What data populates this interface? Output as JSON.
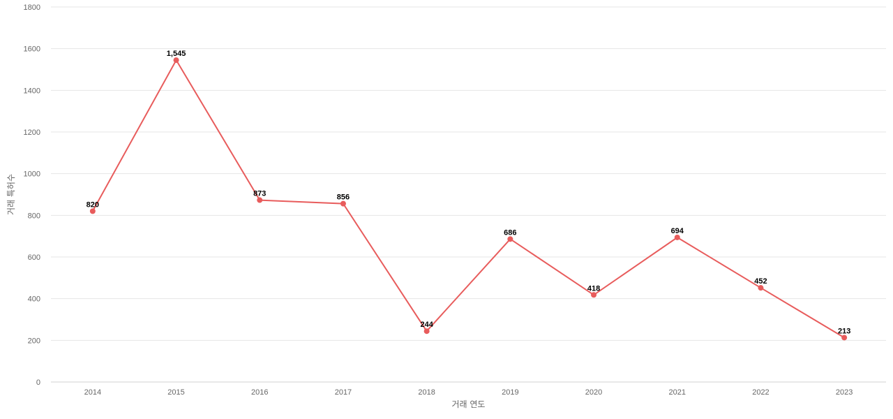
{
  "chart_data": {
    "type": "line",
    "categories": [
      "2014",
      "2015",
      "2016",
      "2017",
      "2018",
      "2019",
      "2020",
      "2021",
      "2022",
      "2023"
    ],
    "series": [
      {
        "values": [
          820,
          1545,
          873,
          856,
          244,
          686,
          418,
          694,
          452,
          213
        ]
      }
    ],
    "data_labels": [
      "820",
      "1,545",
      "873",
      "856",
      "244",
      "686",
      "418",
      "694",
      "452",
      "213"
    ],
    "xlabel": "거래 연도",
    "ylabel": "거래 특허수",
    "ylim": [
      0,
      1800
    ],
    "yticks": [
      "0",
      "200",
      "400",
      "600",
      "800",
      "1000",
      "1200",
      "1400",
      "1600",
      "1800"
    ],
    "grid": true,
    "line_color": "#e85c5c"
  }
}
